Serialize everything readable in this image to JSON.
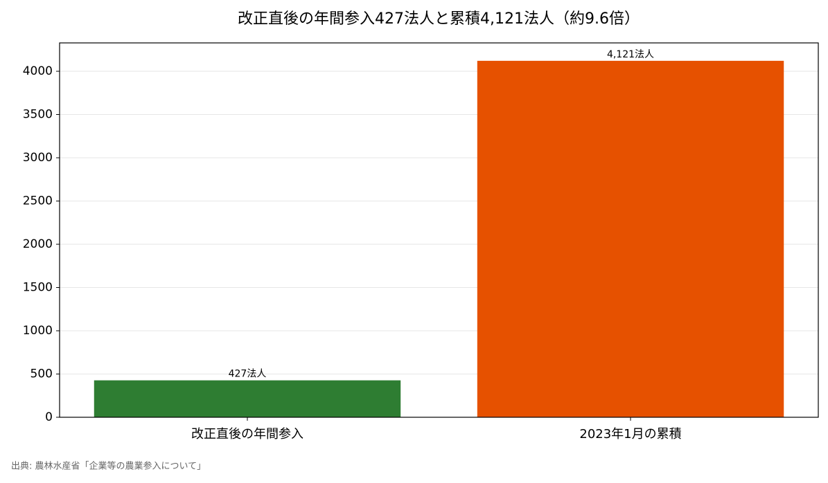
{
  "chart_data": {
    "type": "bar",
    "title": "改正直後の年間参入427法人と累積4,121法人（約9.6倍）",
    "categories": [
      "改正直後の年間参入",
      "2023年1月の累積"
    ],
    "values": [
      427,
      4121
    ],
    "value_labels": [
      "427法人",
      "4,121法人"
    ],
    "colors": [
      "#2e7d32",
      "#e65100"
    ],
    "ylim": [
      0,
      4328
    ],
    "yticks": [
      0,
      500,
      1000,
      1500,
      2000,
      2500,
      3000,
      3500,
      4000
    ],
    "grid": true,
    "source": "出典: 農林水産省「企業等の農業参入について」"
  }
}
